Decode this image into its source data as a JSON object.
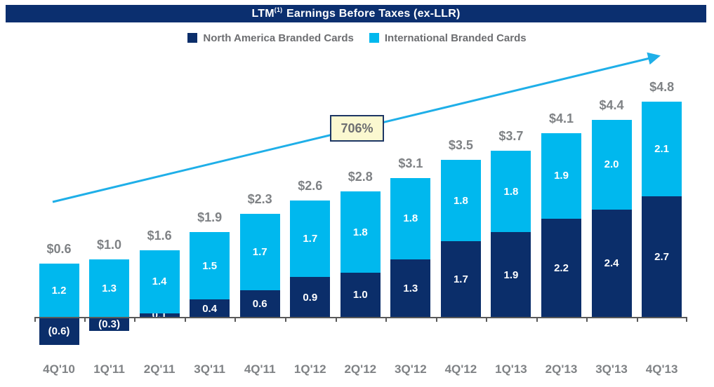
{
  "title": {
    "prefix": "LTM",
    "sup": "(1)",
    "rest": " Earnings Before Taxes (ex-LLR)"
  },
  "colors": {
    "navy": "#0b2e6a",
    "cyan": "#00b8ee",
    "arrow": "#1fafe8",
    "title_bg": "#0b2f6f",
    "gray_label": "#7f8285",
    "legend_text": "#6d6e71",
    "axis": "#595959",
    "annotation_bg": "#fbf8d0",
    "annotation_border": "#1c3664"
  },
  "chart_data": {
    "type": "bar",
    "stacked": true,
    "title": "LTM(1) Earnings Before Taxes (ex-LLR)",
    "categories": [
      "4Q'10",
      "1Q'11",
      "2Q'11",
      "3Q'11",
      "4Q'11",
      "1Q'12",
      "2Q'12",
      "3Q'12",
      "4Q'12",
      "1Q'13",
      "2Q'13",
      "3Q'13",
      "4Q'13"
    ],
    "series": [
      {
        "name": "North America Branded Cards",
        "color_key": "navy",
        "values": [
          -0.6,
          -0.3,
          0.1,
          0.4,
          0.6,
          0.9,
          1.0,
          1.3,
          1.7,
          1.9,
          2.2,
          2.4,
          2.7
        ],
        "labels": [
          "(0.6)",
          "(0.3)",
          "0.1",
          "0.4",
          "0.6",
          "0.9",
          "1.0",
          "1.3",
          "1.7",
          "1.9",
          "2.2",
          "2.4",
          "2.7"
        ]
      },
      {
        "name": "International Branded Cards",
        "color_key": "cyan",
        "values": [
          1.2,
          1.3,
          1.4,
          1.5,
          1.7,
          1.7,
          1.8,
          1.8,
          1.8,
          1.8,
          1.9,
          2.0,
          2.1
        ],
        "labels": [
          "1.2",
          "1.3",
          "1.4",
          "1.5",
          "1.7",
          "1.7",
          "1.8",
          "1.8",
          "1.8",
          "1.8",
          "1.9",
          "2.0",
          "2.1"
        ]
      }
    ],
    "totals": [
      "$0.6",
      "$1.0",
      "$1.6",
      "$1.9",
      "$2.3",
      "$2.6",
      "$2.8",
      "$3.1",
      "$3.5",
      "$3.7",
      "$4.1",
      "$4.4",
      "$4.8"
    ],
    "annotation": "706%",
    "ylim": [
      -1,
      5
    ],
    "grid": false,
    "legend_position": "top",
    "xlabel": "",
    "ylabel": ""
  }
}
